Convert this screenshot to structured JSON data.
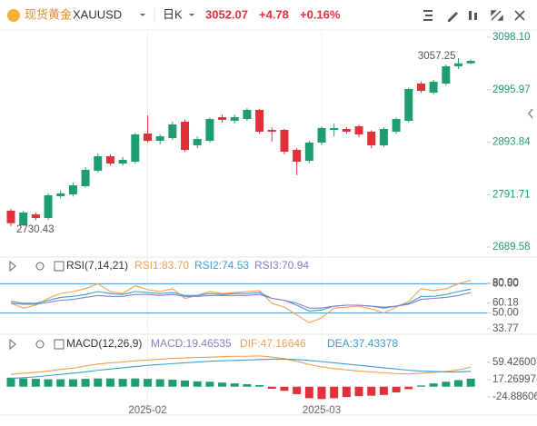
{
  "header": {
    "name": "现货黄金",
    "symbol": "XAUUSD",
    "period": "日K",
    "price": "3052.07",
    "change": "+4.78",
    "change_pct": "+0.16%"
  },
  "chart_data": [
    {
      "type": "candlestick",
      "up_color": "#1e9e6e",
      "down_color": "#e0303a",
      "ylim": [
        2689.58,
        3098.1
      ],
      "yticks": [
        {
          "value": 3098.1,
          "label": "3098.10"
        },
        {
          "value": 2995.97,
          "label": "2995.97"
        },
        {
          "value": 2893.84,
          "label": "2893.84"
        },
        {
          "value": 2791.71,
          "label": "2791.71"
        },
        {
          "value": 2689.58,
          "label": "2689.58"
        }
      ],
      "x_labels": [
        {
          "label": "2025-02",
          "index": 11
        },
        {
          "label": "2025-03",
          "index": 25
        }
      ],
      "open": [
        2760.3,
        2732.1,
        2753.3,
        2746.2,
        2788.6,
        2792.2,
        2808.1,
        2838.2,
        2866.4,
        2852.3,
        2855.8,
        2910.6,
        2896.5,
        2901.8,
        2933.6,
        2887.7,
        2896.5,
        2942.5,
        2935.4,
        2938.9,
        2956.6,
        2917.7,
        2917.7,
        2878.8,
        2857.6,
        2893.0,
        2917.7,
        2919.5,
        2924.8,
        2914.2,
        2887.7,
        2914.2,
        2935.4,
        3007.9,
        2990.2,
        3007.9,
        3041.5,
        3047.29
      ],
      "high": [
        2764,
        2760,
        2757,
        2794,
        2800,
        2815,
        2845,
        2872,
        2870,
        2865,
        2912,
        2946,
        2909,
        2934,
        2938,
        2905,
        2942,
        2947,
        2947,
        2960,
        2959,
        2922,
        2920,
        2882,
        2897,
        2925,
        2930,
        2923,
        2928,
        2917,
        2923,
        2942,
        3000,
        3012,
        3015,
        3045,
        3057.25,
        3055
      ],
      "low": [
        2730.43,
        2732,
        2742,
        2742,
        2784,
        2788,
        2805,
        2835,
        2848,
        2848,
        2852,
        2893,
        2890,
        2898,
        2875,
        2882,
        2893,
        2932,
        2930,
        2935,
        2910,
        2895,
        2870,
        2829.3,
        2853,
        2888,
        2905,
        2910,
        2903,
        2882,
        2884,
        2910,
        2932,
        2990,
        2987,
        3004,
        3036,
        3046
      ],
      "close": [
        2736,
        2756.8,
        2746.2,
        2790.4,
        2794.0,
        2809.8,
        2839.9,
        2866.4,
        2852.3,
        2859.4,
        2908.9,
        2896.5,
        2905.3,
        2928.3,
        2878.8,
        2900.0,
        2938.9,
        2937.2,
        2942.5,
        2956.6,
        2914.2,
        2914.2,
        2875.3,
        2855.8,
        2893.0,
        2921.3,
        2921.3,
        2914.2,
        2908.9,
        2887.7,
        2919.5,
        2938.9,
        2997.3,
        2993.8,
        3011.4,
        3041.5,
        3047.29,
        3052.07
      ],
      "annotations": [
        {
          "value": 3057.25,
          "label": "3057.25"
        },
        {
          "value": 2730.43,
          "label": "2730.43"
        }
      ]
    },
    {
      "type": "line",
      "title": "RSI(7,14,21)",
      "ylim": [
        30,
        86
      ],
      "yticks": [
        {
          "value": 80.9,
          "label": "80.90"
        },
        {
          "value": 80,
          "label": "80.00"
        },
        {
          "value": 60.18,
          "label": "60.18"
        },
        {
          "value": 50,
          "label": "50.00"
        },
        {
          "value": 33.77,
          "label": "33.77"
        }
      ],
      "ref_lines": [
        80,
        50
      ],
      "ref_color": "#3a9ad9",
      "series": [
        {
          "name": "RSI1:83.70",
          "color": "#f0a04b",
          "values": [
            60,
            55,
            58,
            65,
            70,
            72,
            75,
            80,
            72,
            70,
            78,
            74,
            72,
            75,
            65,
            68,
            72,
            70,
            71,
            72,
            73,
            60,
            56,
            48,
            40,
            45,
            55,
            56,
            57,
            54,
            50,
            56,
            62,
            75,
            73,
            75,
            80,
            83.7
          ]
        },
        {
          "name": "RSI2:74.53",
          "color": "#3aa0d8",
          "values": [
            62,
            60,
            60,
            63,
            66,
            67,
            69,
            72,
            70,
            69,
            72,
            71,
            70,
            71,
            68,
            68,
            70,
            69,
            70,
            70,
            71,
            65,
            63,
            58,
            52,
            53,
            57,
            58,
            58,
            57,
            55,
            57,
            60,
            67,
            67,
            69,
            72,
            74.53
          ]
        },
        {
          "name": "RSI3:70.94",
          "color": "#8e7cc3",
          "values": [
            60,
            59,
            59,
            61,
            63,
            64,
            66,
            68,
            67,
            67,
            69,
            69,
            68,
            69,
            67,
            67,
            68,
            68,
            68,
            68,
            69,
            65,
            63,
            60,
            55,
            55,
            57,
            58,
            58,
            57,
            56,
            57,
            59,
            64,
            65,
            66,
            68,
            70.94
          ]
        }
      ]
    },
    {
      "type": "macd",
      "title": "MACD(12,26,9)",
      "ylim": [
        -47,
        90
      ],
      "yticks": [
        {
          "value": 59.426,
          "label": "59.42600"
        },
        {
          "value": 17.26997,
          "label": "17.26997"
        },
        {
          "value": -24.88606,
          "label": "-24.88606"
        }
      ],
      "up_color": "#1e9e6e",
      "down_color": "#e0303a",
      "histogram": {
        "name": "MACD:19.46535",
        "color": "#8e7cc3",
        "values": [
          22,
          20,
          19,
          18,
          18,
          18,
          19,
          20,
          20,
          19,
          20,
          19,
          18,
          17,
          15,
          13,
          12,
          10,
          8,
          6,
          4,
          -5,
          -10,
          -18,
          -28,
          -30,
          -28,
          -25,
          -23,
          -22,
          -20,
          -14,
          -6,
          3,
          8,
          12,
          16,
          19.47
        ]
      },
      "series": [
        {
          "name": "DIF:47.16646",
          "color": "#f0a04b",
          "values": [
            30,
            33,
            35,
            38,
            42,
            45,
            50,
            55,
            58,
            60,
            63,
            65,
            67,
            69,
            70,
            71,
            72,
            73,
            74,
            74,
            75,
            72,
            68,
            62,
            54,
            48,
            44,
            41,
            38,
            36,
            34,
            32,
            31,
            33,
            35,
            37,
            41,
            47.17
          ]
        },
        {
          "name": "DEA:37.43378",
          "color": "#3aa0d8",
          "values": [
            20,
            22,
            24,
            27,
            30,
            33,
            36,
            40,
            43,
            46,
            49,
            52,
            54,
            56,
            58,
            60,
            62,
            63,
            64,
            65,
            66,
            67,
            67,
            66,
            64,
            61,
            58,
            55,
            52,
            49,
            46,
            43,
            40,
            38,
            37,
            36,
            36,
            37.43
          ]
        }
      ]
    }
  ]
}
